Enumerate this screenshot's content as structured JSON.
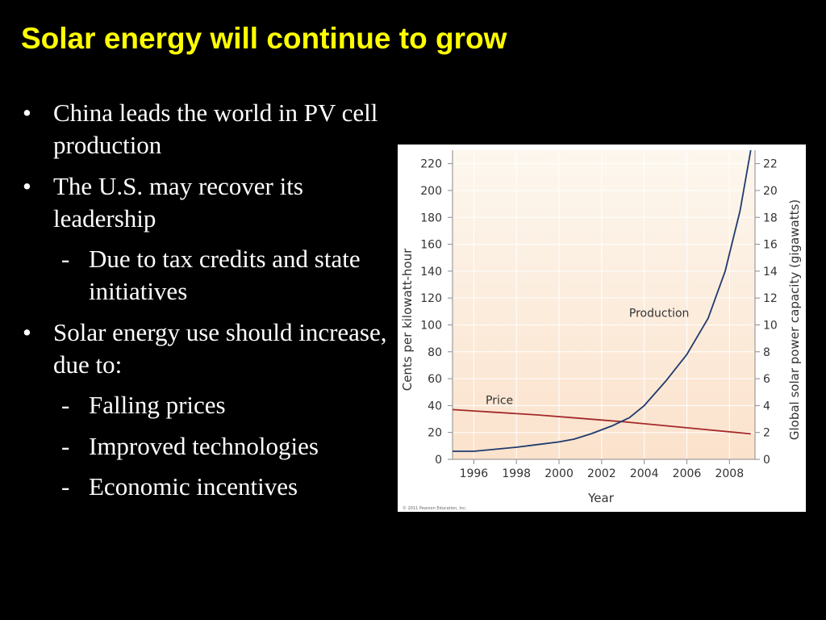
{
  "slide": {
    "title": "Solar energy will continue to grow",
    "title_color": "#FFFF00",
    "text_color": "#FFFFFF",
    "background_color": "#000000"
  },
  "bullets": [
    {
      "level": 1,
      "marker": "•",
      "text": "China leads the world in PV cell production"
    },
    {
      "level": 1,
      "marker": "•",
      "text": "The U.S. may recover its leadership"
    },
    {
      "level": 2,
      "marker": "-",
      "text": "Due to tax credits and state initiatives"
    },
    {
      "level": 1,
      "marker": "•",
      "text": "Solar energy use should increase, due to:"
    },
    {
      "level": 2,
      "marker": "-",
      "text": "Falling prices"
    },
    {
      "level": 2,
      "marker": "-",
      "text": "Improved technologies"
    },
    {
      "level": 2,
      "marker": "-",
      "text": "Economic incentives"
    }
  ],
  "chart_data": {
    "type": "line",
    "title": "",
    "xlabel": "Year",
    "ylabel": "Cents per kilowatt-hour",
    "y2label": "Global solar power capacity (gigawatts)",
    "xlim": [
      1995,
      2009.2
    ],
    "ylim": [
      0,
      230
    ],
    "y2lim": [
      0,
      23
    ],
    "xticks": [
      1996,
      1998,
      2000,
      2002,
      2004,
      2006,
      2008
    ],
    "yticks": [
      0,
      20,
      40,
      60,
      80,
      100,
      120,
      140,
      160,
      180,
      200,
      220
    ],
    "y2ticks": [
      0,
      2,
      4,
      6,
      8,
      10,
      12,
      14,
      16,
      18,
      20,
      22
    ],
    "grid": true,
    "legend": "none",
    "background_gradient": [
      "#FBE2CC",
      "#FDF7EE"
    ],
    "series": [
      {
        "name": "Price",
        "axis": "left",
        "color": "#A32A2A",
        "label_at": [
          1997.2,
          41
        ],
        "x": [
          1995,
          1997,
          1999,
          2001,
          2003,
          2005,
          2007,
          2009
        ],
        "y": [
          37,
          35,
          33,
          30.5,
          28,
          25,
          22,
          19
        ]
      },
      {
        "name": "Production",
        "axis": "right",
        "color": "#1F3A6E",
        "label_at": [
          2004.7,
          10.6
        ],
        "x": [
          1995,
          1996,
          1997,
          1998,
          1999,
          2000,
          2000.7,
          2001.5,
          2002.5,
          2003.3,
          2004,
          2005,
          2006,
          2007,
          2007.8,
          2008.5,
          2009
        ],
        "y": [
          0.6,
          0.6,
          0.75,
          0.9,
          1.1,
          1.3,
          1.5,
          1.9,
          2.5,
          3.1,
          4.0,
          5.8,
          7.8,
          10.5,
          14.0,
          18.5,
          23.0
        ]
      }
    ],
    "credit": "© 2011 Pearson Education, Inc."
  }
}
